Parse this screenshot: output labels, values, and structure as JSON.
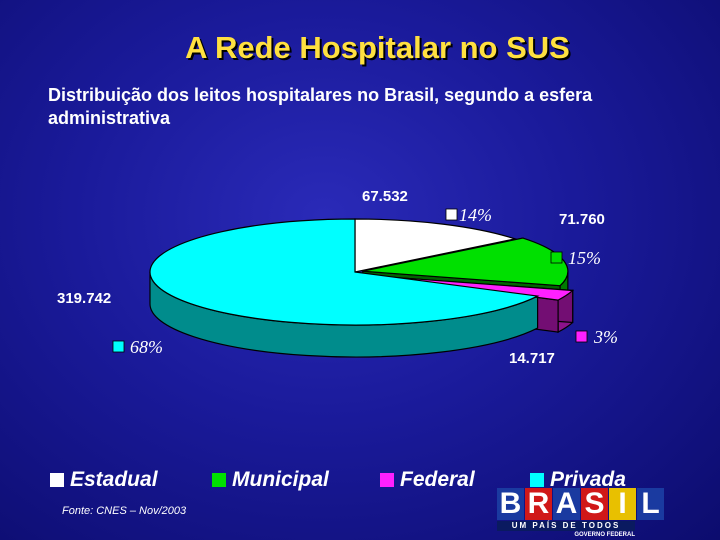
{
  "header": {
    "title": "A Rede Hospitalar no SUS",
    "subtitle": "Distribuição dos leitos hospitalares no Brasil, segundo a esfera administrativa"
  },
  "chart_data": {
    "type": "pie",
    "style": "3d-exploded",
    "legend_position": "bottom",
    "slices": [
      {
        "name": "Estadual",
        "value": 67532,
        "value_label": "67.532",
        "percent_label": "14%",
        "color": "#ffffff"
      },
      {
        "name": "Municipal",
        "value": 71760,
        "value_label": "71.760",
        "percent_label": "15%",
        "color": "#00e000"
      },
      {
        "name": "Federal",
        "value": 14717,
        "value_label": "14.717",
        "percent_label": "3%",
        "color": "#ff20ff"
      },
      {
        "name": "Privada",
        "value": 319742,
        "value_label": "319.742",
        "percent_label": "68%",
        "color": "#00ffff"
      }
    ]
  },
  "footer": {
    "source": "Fonte: CNES – Nov/2003"
  },
  "logo": {
    "letters": [
      "B",
      "R",
      "A",
      "S",
      "I",
      "L"
    ],
    "letter_colors": [
      "#1a3aa0",
      "#d01818",
      "#1a3aa0",
      "#d01818",
      "#e8c000",
      "#1a3aa0"
    ],
    "tagline": "UM PAÍS DE TODOS",
    "sub": "GOVERNO FEDERAL"
  }
}
